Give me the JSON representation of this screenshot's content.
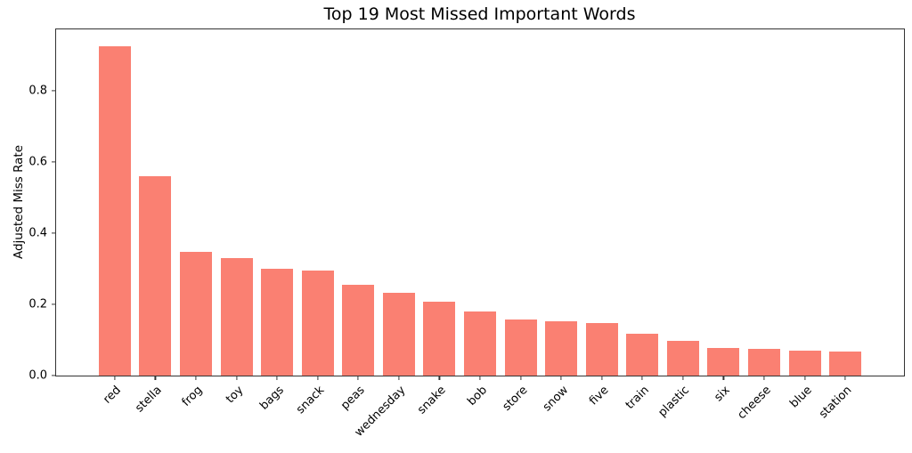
{
  "title": "Top 19 Most Missed Important Words",
  "y_axis_label": "Adjusted Miss Rate",
  "chart_data": {
    "type": "bar",
    "title": "Top 19 Most Missed Important Words",
    "xlabel": "",
    "ylabel": "Adjusted Miss Rate",
    "categories": [
      "red",
      "stella",
      "frog",
      "toy",
      "bags",
      "snack",
      "peas",
      "wednesday",
      "snake",
      "bob",
      "store",
      "snow",
      "five",
      "train",
      "plastic",
      "six",
      "cheese",
      "blue",
      "station"
    ],
    "values": [
      0.925,
      0.56,
      0.347,
      0.33,
      0.3,
      0.295,
      0.256,
      0.232,
      0.208,
      0.179,
      0.158,
      0.152,
      0.148,
      0.118,
      0.098,
      0.078,
      0.075,
      0.071,
      0.068
    ],
    "ylim": [
      0,
      0.9725
    ],
    "yticks": [
      0.0,
      0.2,
      0.4,
      0.6,
      0.8
    ],
    "ytick_labels": [
      "0.0",
      "0.2",
      "0.4",
      "0.6",
      "0.8"
    ],
    "xtick_rotation_deg": 45,
    "bar_color": "#FA8072",
    "spine_color": "#333333",
    "grid": false,
    "legend": null,
    "background_color": "#ffffff"
  }
}
